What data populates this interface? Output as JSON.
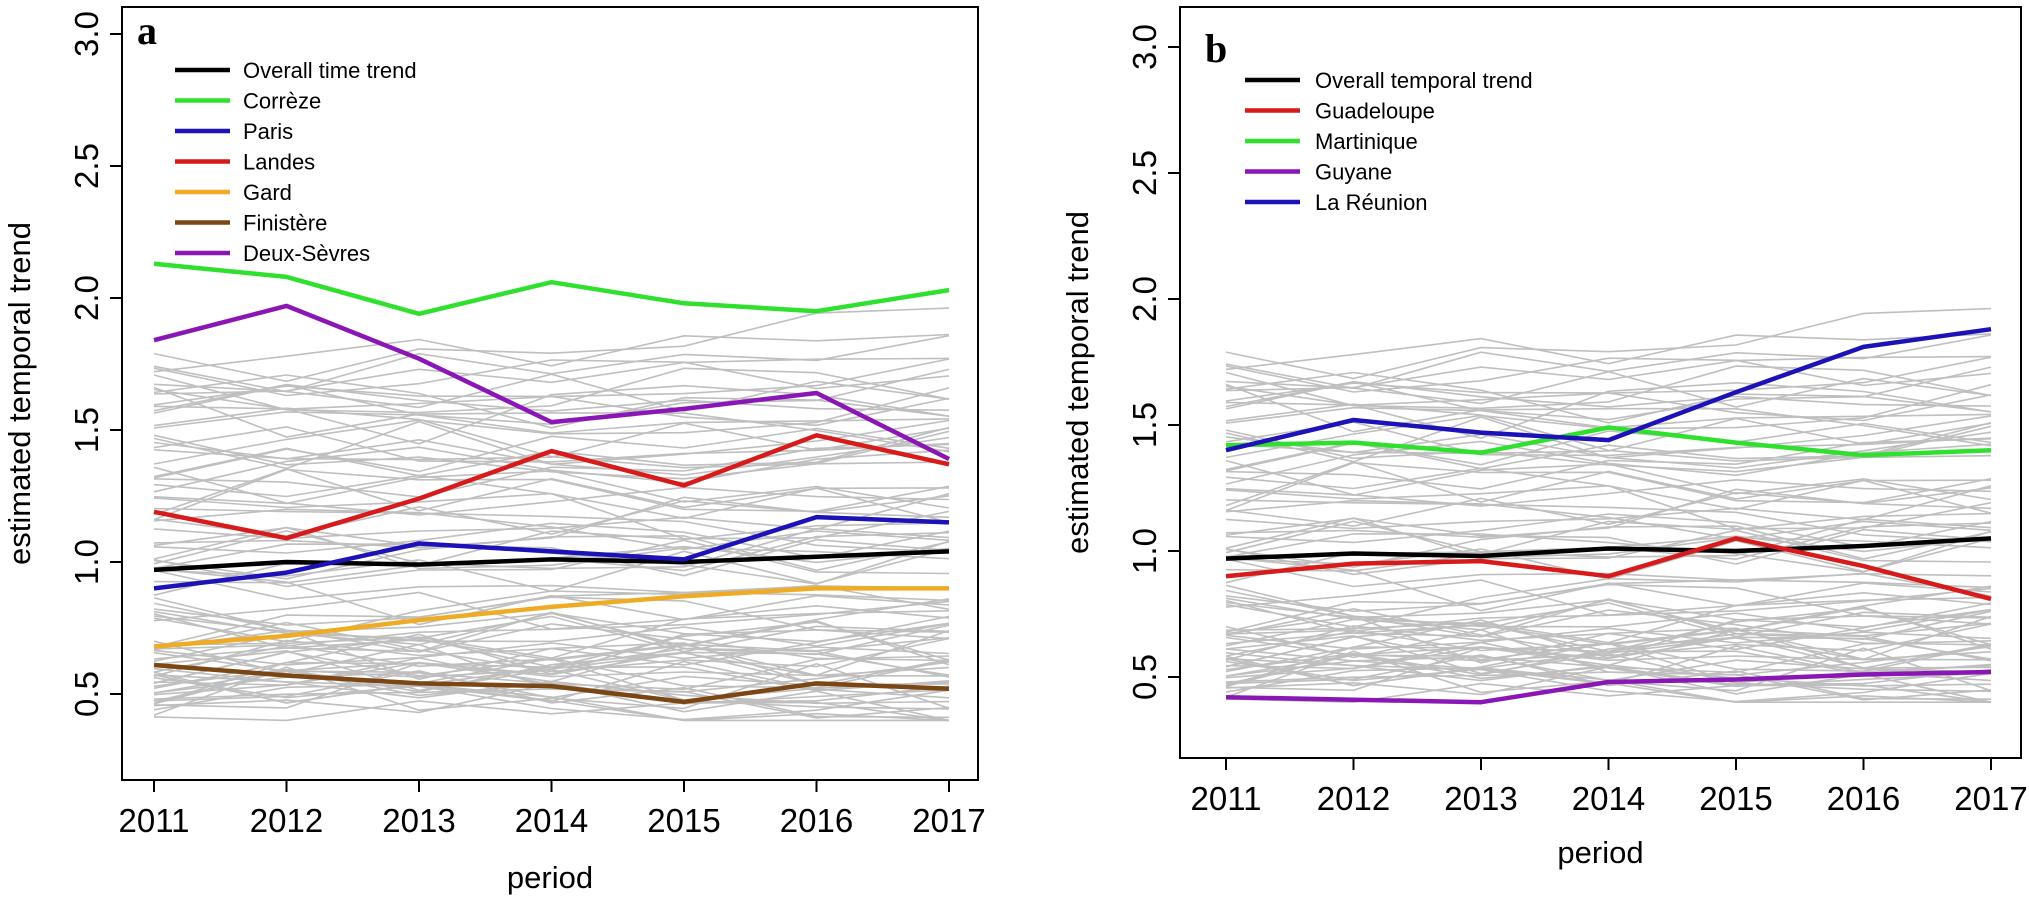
{
  "chart_data": [
    {
      "type": "line",
      "panel_label": "a",
      "x": [
        2011,
        2012,
        2013,
        2014,
        2015,
        2016,
        2017
      ],
      "xticks": [
        "2011",
        "2012",
        "2013",
        "2014",
        "2015",
        "2016",
        "2017"
      ],
      "yticks": [
        "0.5",
        "1.0",
        "1.5",
        "2.0",
        "2.5",
        "3.0"
      ],
      "xlabel": "period",
      "ylabel": "estimated temporal trend",
      "ylim": [
        0.3,
        3.0
      ],
      "legend_position": "top-left",
      "background_color": "#bfbfbf",
      "series": [
        {
          "name": "Overall time trend",
          "color": "#000000",
          "values": [
            0.97,
            1.0,
            0.99,
            1.01,
            1.0,
            1.02,
            1.04
          ]
        },
        {
          "name": "Corrèze",
          "color": "#2fe02f",
          "values": [
            2.13,
            2.08,
            1.94,
            2.06,
            1.98,
            1.95,
            2.03
          ]
        },
        {
          "name": "Paris",
          "color": "#1c12b8",
          "values": [
            0.9,
            0.96,
            1.07,
            1.04,
            1.01,
            1.17,
            1.15
          ]
        },
        {
          "name": "Landes",
          "color": "#d71a1a",
          "values": [
            1.19,
            1.09,
            1.24,
            1.42,
            1.29,
            1.48,
            1.37
          ]
        },
        {
          "name": "Gard",
          "color": "#f0ab26",
          "values": [
            0.68,
            0.72,
            0.78,
            0.83,
            0.87,
            0.9,
            0.9
          ]
        },
        {
          "name": "Finistère",
          "color": "#7a4614",
          "values": [
            0.61,
            0.57,
            0.54,
            0.53,
            0.47,
            0.54,
            0.52
          ]
        },
        {
          "name": "Deux-Sèvres",
          "color": "#8a17b5",
          "values": [
            1.84,
            1.97,
            1.77,
            1.53,
            1.58,
            1.64,
            1.39
          ]
        }
      ]
    },
    {
      "type": "line",
      "panel_label": "b",
      "x": [
        2011,
        2012,
        2013,
        2014,
        2015,
        2016,
        2017
      ],
      "xticks": [
        "2011",
        "2012",
        "2013",
        "2014",
        "2015",
        "2016",
        "2017"
      ],
      "yticks": [
        "0.5",
        "1.0",
        "1.5",
        "2.0",
        "2.5",
        "3.0"
      ],
      "xlabel": "period",
      "ylabel": "estimated temporal trend",
      "ylim": [
        0.3,
        3.0
      ],
      "legend_position": "top-left",
      "background_color": "#bfbfbf",
      "series": [
        {
          "name": "Overall temporal trend",
          "color": "#000000",
          "values": [
            0.97,
            0.99,
            0.98,
            1.01,
            1.0,
            1.02,
            1.05
          ]
        },
        {
          "name": "Guadeloupe",
          "color": "#d71a1a",
          "values": [
            0.9,
            0.95,
            0.96,
            0.9,
            1.05,
            0.94,
            0.81
          ]
        },
        {
          "name": "Martinique",
          "color": "#2fe02f",
          "values": [
            1.42,
            1.43,
            1.39,
            1.49,
            1.43,
            1.38,
            1.4
          ]
        },
        {
          "name": "Guyane",
          "color": "#8a17b5",
          "values": [
            0.42,
            0.41,
            0.4,
            0.48,
            0.49,
            0.51,
            0.52
          ]
        },
        {
          "name": "La Réunion",
          "color": "#1c12b8",
          "values": [
            1.4,
            1.52,
            1.47,
            1.44,
            1.63,
            1.81,
            1.88
          ]
        }
      ]
    }
  ]
}
